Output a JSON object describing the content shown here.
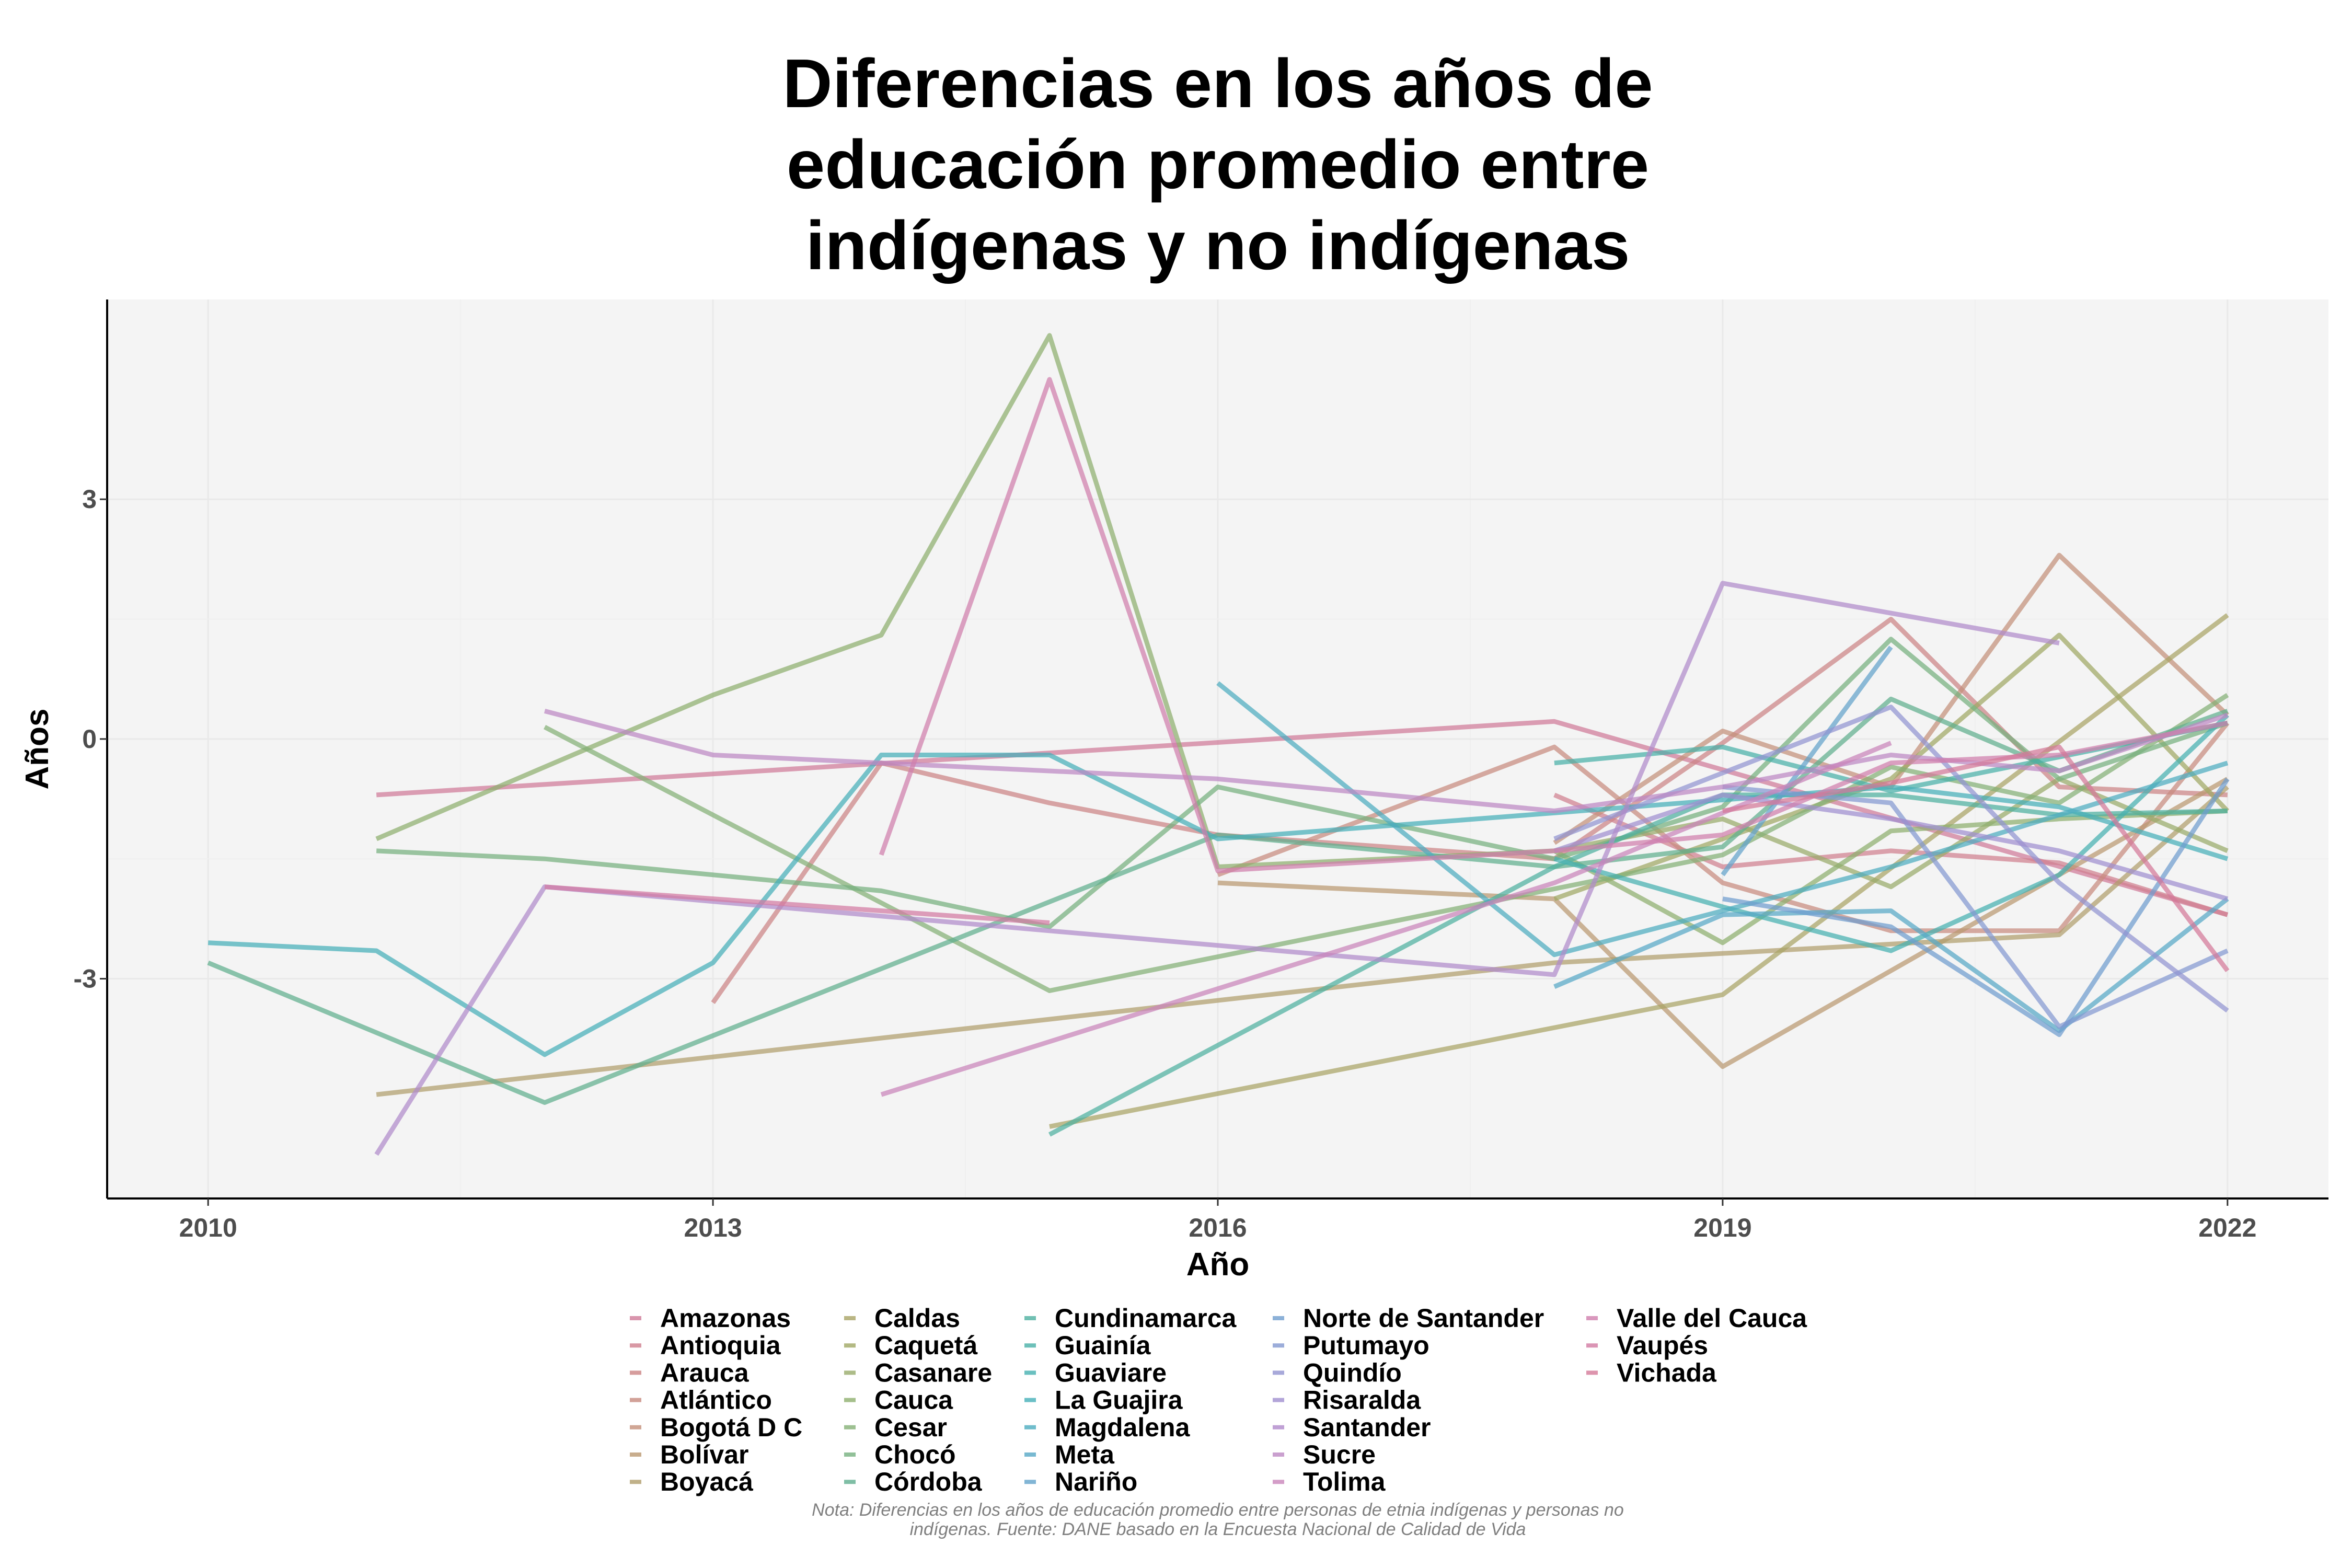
{
  "chart_data": {
    "type": "line",
    "title_lines": [
      "Diferencias en los años de",
      "educación promedio entre",
      "indígenas y no indígenas"
    ],
    "xlabel": "Año",
    "ylabel": "Años",
    "x_ticks": [
      2010,
      2013,
      2016,
      2019,
      2022
    ],
    "y_ticks": [
      3,
      0,
      -3
    ],
    "y_tick_labels": [
      "3",
      "0",
      "-3"
    ],
    "xlim": [
      2009.4,
      2022.6
    ],
    "ylim": [
      -5.75,
      5.5
    ],
    "note_lines": [
      "Nota: Diferencias en los años de educación promedio entre personas de etnia indígenas y personas no",
      "indígenas. Fuente: DANE basado en la Encuesta Nacional de Calidad de Vida"
    ],
    "series": [
      {
        "name": "Amazonas",
        "color": "#D07A98",
        "points": [
          [
            2011,
            -0.7
          ],
          [
            2018,
            0.22
          ],
          [
            2022,
            -2.2
          ]
        ]
      },
      {
        "name": "Antioquia",
        "color": "#D0808F",
        "points": [
          [
            2018,
            -0.7
          ],
          [
            2019,
            -1.6
          ],
          [
            2020,
            -1.4
          ],
          [
            2021,
            -1.55
          ],
          [
            2022,
            -2.2
          ]
        ]
      },
      {
        "name": "Arauca",
        "color": "#CC8485",
        "points": [
          [
            2013,
            -3.3
          ],
          [
            2014,
            -0.3
          ],
          [
            2015,
            -0.8
          ],
          [
            2016,
            -1.2
          ],
          [
            2018,
            -1.5
          ],
          [
            2019,
            -0.05
          ],
          [
            2020,
            1.5
          ],
          [
            2021,
            -0.6
          ],
          [
            2022,
            -0.7
          ]
        ]
      },
      {
        "name": "Atlántico",
        "color": "#C78A7E",
        "points": [
          [
            2016,
            -1.7
          ],
          [
            2018,
            -0.1
          ],
          [
            2019,
            -1.8
          ],
          [
            2020,
            -2.4
          ],
          [
            2021,
            -2.4
          ],
          [
            2022,
            0.2
          ]
        ]
      },
      {
        "name": "Bogotá D C",
        "color": "#C4907A",
        "points": [
          [
            2018,
            -1.3
          ],
          [
            2019,
            0.1
          ],
          [
            2020,
            -0.6
          ],
          [
            2021,
            2.3
          ],
          [
            2022,
            0.3
          ]
        ]
      },
      {
        "name": "Bolívar",
        "color": "#BA9870",
        "points": [
          [
            2016,
            -1.8
          ],
          [
            2018,
            -2.0
          ],
          [
            2019,
            -4.1
          ],
          [
            2022,
            -0.5
          ]
        ]
      },
      {
        "name": "Boyacá",
        "color": "#B09E6C",
        "points": [
          [
            2011,
            -4.45
          ],
          [
            2018,
            -2.8
          ],
          [
            2021,
            -2.45
          ],
          [
            2022,
            -0.6
          ]
        ]
      },
      {
        "name": "Caldas",
        "color": "#A9A465",
        "points": [
          [
            2015,
            -4.85
          ],
          [
            2019,
            -3.2
          ],
          [
            2022,
            1.55
          ]
        ]
      },
      {
        "name": "Caquetá",
        "color": "#A0A864",
        "points": [
          [
            2018,
            -2.0
          ],
          [
            2020,
            -0.5
          ],
          [
            2021,
            1.3
          ],
          [
            2022,
            -0.9
          ]
        ]
      },
      {
        "name": "Casanare",
        "color": "#98AB6A",
        "points": [
          [
            2018,
            -1.4
          ],
          [
            2019,
            -1.0
          ],
          [
            2020,
            -1.85
          ],
          [
            2021,
            -0.5
          ],
          [
            2022,
            -1.4
          ]
        ]
      },
      {
        "name": "Cauca",
        "color": "#8EAF6E",
        "points": [
          [
            2011,
            -1.25
          ],
          [
            2013,
            0.55
          ],
          [
            2014,
            1.3
          ],
          [
            2015,
            5.05
          ],
          [
            2016,
            -1.6
          ],
          [
            2018,
            -1.4
          ],
          [
            2019,
            -2.55
          ],
          [
            2020,
            -1.15
          ],
          [
            2021,
            -1.0
          ],
          [
            2022,
            -0.9
          ]
        ]
      },
      {
        "name": "Cesar",
        "color": "#84B076",
        "points": [
          [
            2012,
            0.15
          ],
          [
            2015,
            -3.15
          ],
          [
            2019,
            -1.45
          ],
          [
            2020,
            -0.35
          ],
          [
            2021,
            -0.8
          ],
          [
            2022,
            0.55
          ]
        ]
      },
      {
        "name": "Chocó",
        "color": "#76B07E",
        "points": [
          [
            2011,
            -1.4
          ],
          [
            2012,
            -1.5
          ],
          [
            2014,
            -1.9
          ],
          [
            2015,
            -2.35
          ],
          [
            2016,
            -0.6
          ],
          [
            2018,
            -1.5
          ],
          [
            2019,
            -0.85
          ],
          [
            2020,
            1.25
          ],
          [
            2021,
            -0.5
          ],
          [
            2022,
            0.2
          ]
        ]
      },
      {
        "name": "Córdoba",
        "color": "#5FAE8E",
        "points": [
          [
            2010,
            -2.8
          ],
          [
            2012,
            -4.55
          ],
          [
            2016,
            -1.2
          ],
          [
            2018,
            -1.6
          ],
          [
            2019,
            -1.35
          ],
          [
            2020,
            0.5
          ],
          [
            2021,
            -0.4
          ],
          [
            2022,
            0.35
          ]
        ]
      },
      {
        "name": "Cundinamarca",
        "color": "#4DB0A0",
        "points": [
          [
            2015,
            -4.95
          ],
          [
            2018,
            -1.6
          ],
          [
            2019,
            -0.7
          ],
          [
            2020,
            -0.7
          ],
          [
            2021,
            -0.95
          ],
          [
            2022,
            -0.9
          ]
        ]
      },
      {
        "name": "Guainía",
        "color": "#48B0A8",
        "points": [
          [
            2018,
            -0.3
          ],
          [
            2019,
            -0.1
          ],
          [
            2020,
            -0.65
          ],
          [
            2022,
            0.2
          ]
        ]
      },
      {
        "name": "Guaviare",
        "color": "#45B0B0",
        "points": [
          [
            2018,
            -1.5
          ],
          [
            2019,
            -2.1
          ],
          [
            2020,
            -2.65
          ],
          [
            2021,
            -1.7
          ],
          [
            2022,
            0.3
          ]
        ]
      },
      {
        "name": "La Guajira",
        "color": "#45AFB8",
        "points": [
          [
            2010,
            -2.55
          ],
          [
            2011,
            -2.65
          ],
          [
            2012,
            -3.95
          ],
          [
            2013,
            -2.8
          ],
          [
            2014,
            -0.2
          ],
          [
            2015,
            -0.2
          ],
          [
            2016,
            -1.25
          ],
          [
            2020,
            -0.6
          ],
          [
            2021,
            -0.85
          ],
          [
            2022,
            -1.5
          ]
        ]
      },
      {
        "name": "Magdalena",
        "color": "#4CACBF",
        "points": [
          [
            2016,
            0.7
          ],
          [
            2018,
            -2.7
          ],
          [
            2020,
            -1.6
          ],
          [
            2022,
            -0.3
          ]
        ]
      },
      {
        "name": "Meta",
        "color": "#56A8C6",
        "points": [
          [
            2018,
            -3.1
          ],
          [
            2019,
            -2.2
          ],
          [
            2020,
            -2.15
          ],
          [
            2021,
            -3.65
          ],
          [
            2022,
            -2.0
          ]
        ]
      },
      {
        "name": "Nariño",
        "color": "#62A2CB",
        "points": [
          [
            2019,
            -1.7
          ],
          [
            2020,
            1.15
          ]
        ]
      },
      {
        "name": "Norte de Santander",
        "color": "#6F9DCE",
        "points": [
          [
            2019,
            -2.0
          ],
          [
            2020,
            -2.35
          ],
          [
            2021,
            -3.7
          ],
          [
            2022,
            -0.5
          ]
        ]
      },
      {
        "name": "Putumayo",
        "color": "#8398D1",
        "points": [
          [
            2019,
            -0.6
          ],
          [
            2020,
            -0.8
          ],
          [
            2021,
            -3.6
          ],
          [
            2022,
            -2.65
          ]
        ]
      },
      {
        "name": "Quindío",
        "color": "#9294D1",
        "points": [
          [
            2018,
            -1.25
          ],
          [
            2020,
            0.4
          ],
          [
            2021,
            -1.8
          ],
          [
            2022,
            -3.4
          ]
        ]
      },
      {
        "name": "Risaralda",
        "color": "#A08FD0",
        "points": [
          [
            2018,
            -1.4
          ],
          [
            2019,
            -0.7
          ],
          [
            2020,
            -1.0
          ],
          [
            2021,
            -1.4
          ],
          [
            2022,
            -2.0
          ]
        ]
      },
      {
        "name": "Santander",
        "color": "#B08ACB",
        "points": [
          [
            2011,
            -5.2
          ],
          [
            2012,
            -1.85
          ],
          [
            2018,
            -2.95
          ],
          [
            2019,
            1.95
          ],
          [
            2021,
            1.2
          ]
        ]
      },
      {
        "name": "Sucre",
        "color": "#BD88C3",
        "points": [
          [
            2012,
            0.35
          ],
          [
            2013,
            -0.2
          ],
          [
            2016,
            -0.5
          ],
          [
            2018,
            -0.9
          ],
          [
            2019,
            -0.6
          ],
          [
            2020,
            -0.2
          ],
          [
            2021,
            -0.4
          ],
          [
            2022,
            0.3
          ]
        ]
      },
      {
        "name": "Tolima",
        "color": "#C984BA",
        "points": [
          [
            2014,
            -4.45
          ],
          [
            2018,
            -1.8
          ],
          [
            2020,
            -0.05
          ]
        ]
      },
      {
        "name": "Valle del Cauca",
        "color": "#D07EAC",
        "points": [
          [
            2014,
            -1.45
          ],
          [
            2015,
            4.5
          ],
          [
            2016,
            -1.65
          ],
          [
            2018,
            -1.4
          ],
          [
            2019,
            -1.2
          ],
          [
            2020,
            -0.3
          ],
          [
            2021,
            -0.2
          ],
          [
            2022,
            0.2
          ]
        ]
      },
      {
        "name": "Vaupés",
        "color": "#D27AA2",
        "points": [
          [
            2012,
            -1.85
          ],
          [
            2015,
            -2.3
          ]
        ]
      },
      {
        "name": "Vichada",
        "color": "#D47998",
        "points": [
          [
            2019,
            -0.9
          ],
          [
            2020,
            -0.55
          ],
          [
            2021,
            -0.1
          ],
          [
            2022,
            -2.9
          ]
        ]
      }
    ]
  }
}
